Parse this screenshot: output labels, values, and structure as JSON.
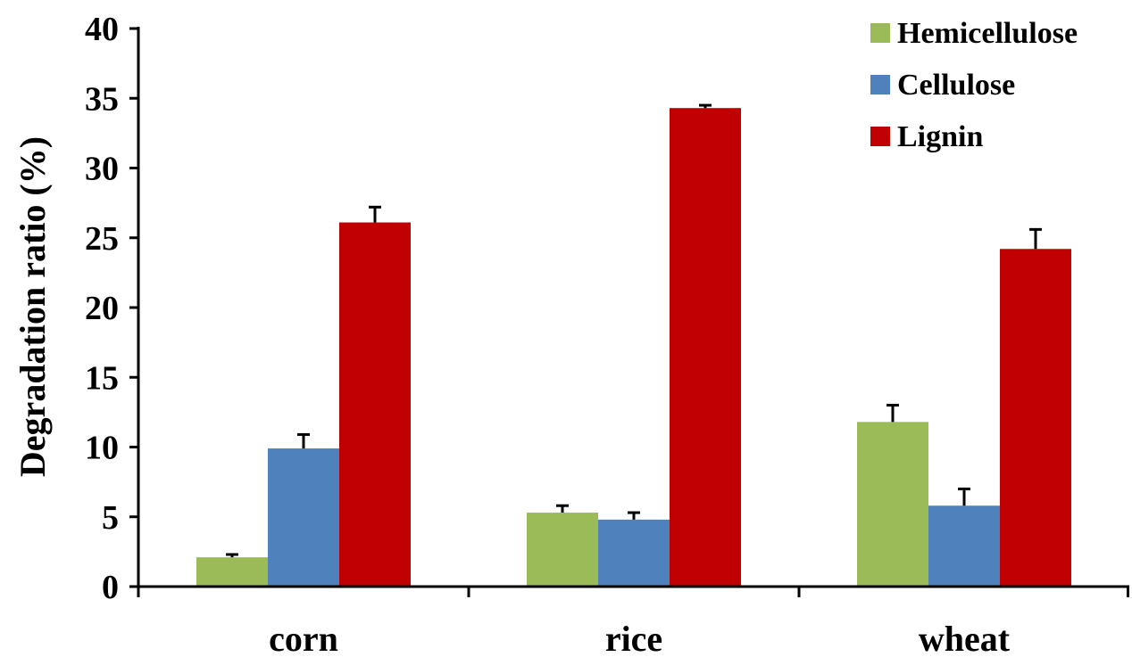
{
  "chart_data": {
    "type": "bar",
    "title": "",
    "xlabel": "",
    "ylabel": "Degradation ratio (%)",
    "ylim": [
      0,
      40
    ],
    "yticks": [
      "0",
      "5",
      "10",
      "15",
      "20",
      "25",
      "30",
      "35",
      "40"
    ],
    "categories": [
      "corn",
      "rice",
      "wheat"
    ],
    "series": [
      {
        "name": "Hemicellulose",
        "color": "#9bbb59",
        "values": [
          2.1,
          5.3,
          11.8
        ],
        "errors": [
          0.2,
          0.5,
          1.2
        ]
      },
      {
        "name": "Cellulose",
        "color": "#4f81bd",
        "values": [
          9.9,
          4.8,
          5.8
        ],
        "errors": [
          1.0,
          0.5,
          1.2
        ]
      },
      {
        "name": "Lignin",
        "color": "#c00000",
        "values": [
          26.1,
          34.3,
          24.2
        ],
        "errors": [
          1.1,
          0.2,
          1.4
        ]
      }
    ],
    "grid": false,
    "legend_position": "top-right"
  }
}
